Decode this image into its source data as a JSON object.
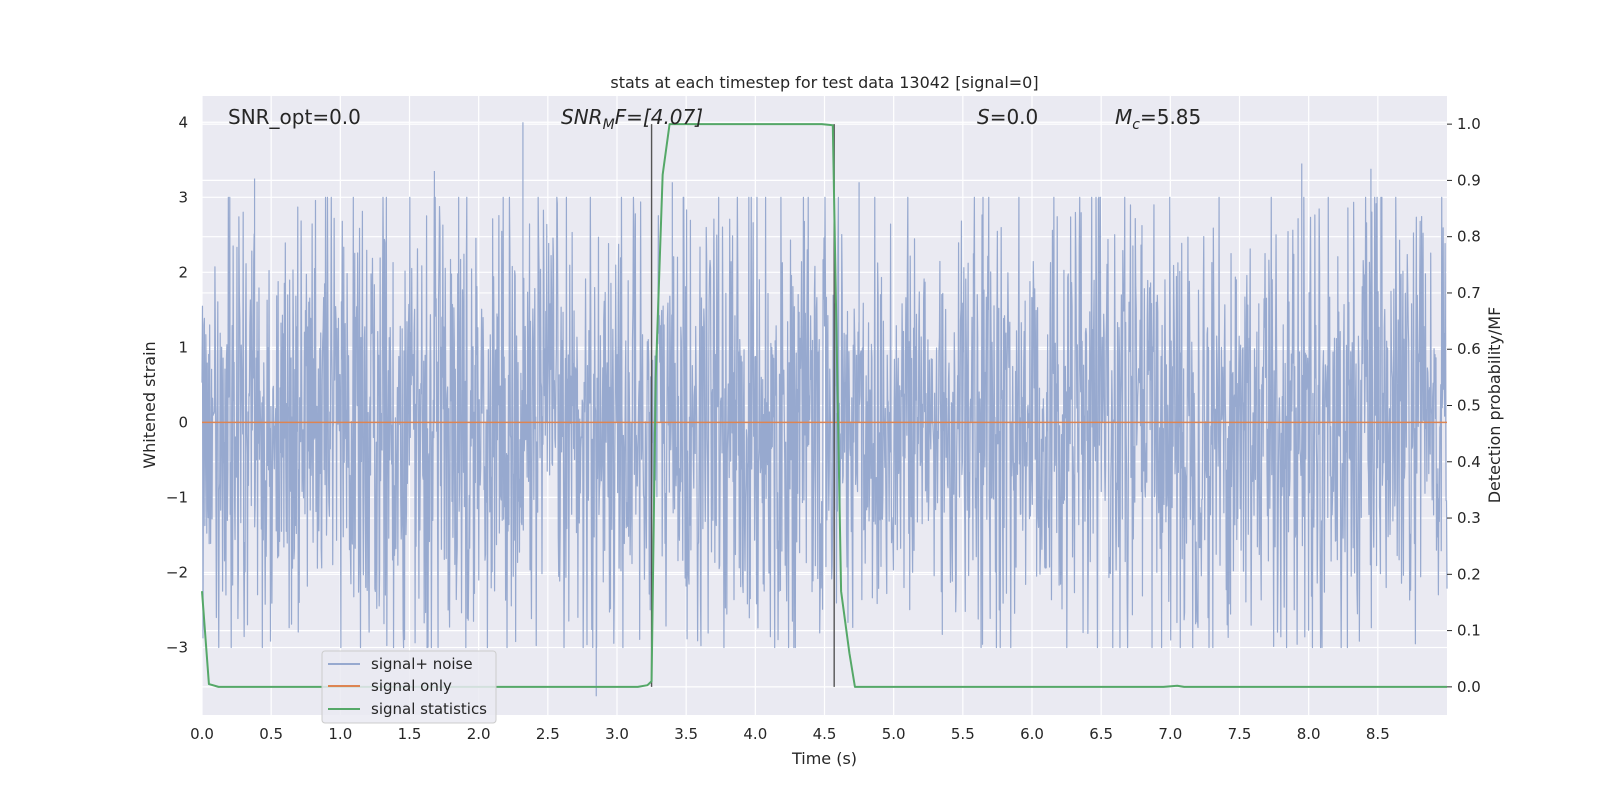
{
  "chart_data": {
    "type": "line",
    "title": "stats at each timestep for test data 13042 [signal=0]",
    "xlabel": "Time (s)",
    "ylabel": "Whitened strain",
    "y2label": "Detection probability/MF",
    "xlim": [
      0.0,
      9.0
    ],
    "ylim": [
      -3.9,
      4.35
    ],
    "y2lim": [
      -0.05,
      1.05
    ],
    "x_ticks": [
      "0.0",
      "0.5",
      "1.0",
      "1.5",
      "2.0",
      "2.5",
      "3.0",
      "3.5",
      "4.0",
      "4.5",
      "5.0",
      "5.5",
      "6.0",
      "6.5",
      "7.0",
      "7.5",
      "8.0",
      "8.5"
    ],
    "y_ticks": [
      "−3",
      "−2",
      "−1",
      "0",
      "1",
      "2",
      "3",
      "4"
    ],
    "y2_ticks": [
      "0.0",
      "0.1",
      "0.2",
      "0.3",
      "0.4",
      "0.5",
      "0.6",
      "0.7",
      "0.8",
      "0.9",
      "1.0"
    ],
    "grid": true,
    "legend_position": "lower-left",
    "annotations": {
      "snr_opt": "SNR_opt=0.0",
      "snr_mf_sym": "SNR",
      "snr_mf_sub": "M",
      "snr_mf_rest": "F=[4.07]",
      "s_sym": "S",
      "s_rest": "=0.0",
      "mc_sym": "M",
      "mc_sub": "c",
      "mc_rest": "=5.85"
    },
    "vertical_lines_x": [
      3.25,
      4.57
    ],
    "series": [
      {
        "name": "signal+ noise",
        "color": "#97a9cf",
        "description_axis": "left",
        "noise_amplitude_typical": 1.8,
        "noise_peaks": [
          [
            0.38,
            3.25
          ],
          [
            1.68,
            3.35
          ],
          [
            2.32,
            4.0
          ],
          [
            2.85,
            -3.65
          ],
          [
            3.4,
            3.2
          ],
          [
            4.75,
            3.2
          ],
          [
            7.95,
            3.45
          ],
          [
            8.45,
            3.38
          ]
        ]
      },
      {
        "name": "signal only",
        "color": "#dd8452",
        "axis": "left",
        "x": [
          0.0,
          9.0
        ],
        "y": [
          0.0,
          0.0
        ]
      },
      {
        "name": "signal statistics",
        "color": "#55a868",
        "axis": "right",
        "x": [
          0.0,
          0.05,
          0.12,
          3.15,
          3.22,
          3.25,
          3.28,
          3.33,
          3.38,
          4.48,
          4.56,
          4.62,
          4.68,
          4.72,
          6.95,
          7.05,
          7.1,
          9.0
        ],
        "y": [
          0.17,
          0.005,
          0.0,
          0.0,
          0.003,
          0.01,
          0.55,
          0.91,
          1.0,
          1.0,
          0.998,
          0.17,
          0.06,
          0.0,
          0.0,
          0.002,
          0.0,
          0.0
        ]
      }
    ]
  }
}
